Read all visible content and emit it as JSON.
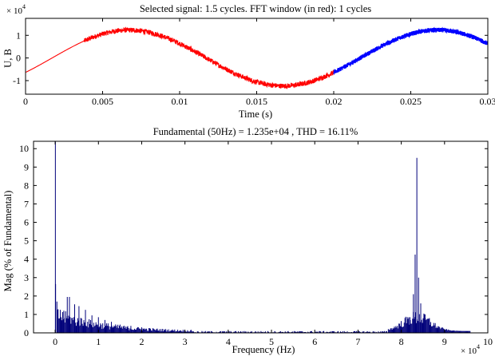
{
  "chart_data": [
    {
      "type": "line",
      "title": "Selected signal: 1.5 cycles. FFT window (in red): 1 cycles",
      "xlabel": "Time (s)",
      "ylabel": "U, B",
      "y_multiplier_label": "× 10",
      "y_multiplier_exp": "4",
      "xlim": [
        0,
        0.03
      ],
      "ylim": [
        -1.6,
        1.75
      ],
      "y_unit_scale": 10000,
      "x_ticks": [
        0,
        0.005,
        0.01,
        0.015,
        0.02,
        0.025,
        0.03
      ],
      "x_tick_labels": [
        "0",
        "0.005",
        "0.01",
        "0.015",
        "0.02",
        "0.025",
        "0.03"
      ],
      "y_ticks": [
        -1,
        0,
        1
      ],
      "y_tick_labels": [
        "-1",
        "0",
        "1"
      ],
      "grid": false,
      "series": [
        {
          "color": "#ff0000",
          "x_range": [
            0,
            0.02
          ],
          "fundamental_amplitude": 1.235,
          "phase_deg": -31,
          "noise_start": 0.0038,
          "noise_amplitude": 0.22
        },
        {
          "color": "#0000ff",
          "x_range": [
            0.02,
            0.03
          ],
          "fundamental_amplitude": 1.235,
          "phase_deg": -31,
          "noise_amplitude": 0.2
        }
      ]
    },
    {
      "type": "bar",
      "title": "Fundamental (50Hz) = 1.235e+04 , THD = 16.11%",
      "xlabel": "Frequency (Hz)",
      "ylabel": "Mag (% of Fundamental)",
      "x_multiplier_label": "× 10",
      "x_multiplier_exp": "4",
      "xlim": [
        -0.5,
        10
      ],
      "ylim": [
        0,
        10.4
      ],
      "x_unit_scale": 10000,
      "x_ticks": [
        0,
        1,
        2,
        3,
        4,
        5,
        6,
        7,
        8,
        9,
        10
      ],
      "x_tick_labels": [
        "0",
        "1",
        "2",
        "3",
        "4",
        "5",
        "6",
        "7",
        "8",
        "9",
        "10"
      ],
      "y_ticks": [
        0,
        1,
        2,
        3,
        4,
        5,
        6,
        7,
        8,
        9,
        10
      ],
      "y_tick_labels": [
        "0",
        "1",
        "2",
        "3",
        "4",
        "5",
        "6",
        "7",
        "8",
        "9",
        "10"
      ],
      "grid": false,
      "bar_color": "#00007a",
      "fundamental": {
        "x": 0.005,
        "value": 100
      },
      "peaks": [
        {
          "x": 0.01,
          "value": 2.65
        },
        {
          "x": 0.04,
          "value": 1.7
        },
        {
          "x": 0.12,
          "value": 1.25
        },
        {
          "x": 0.2,
          "value": 1.2
        },
        {
          "x": 0.28,
          "value": 1.95
        },
        {
          "x": 0.33,
          "value": 1.95
        },
        {
          "x": 0.45,
          "value": 1.55
        },
        {
          "x": 0.55,
          "value": 1.45
        },
        {
          "x": 0.7,
          "value": 1.25
        },
        {
          "x": 0.85,
          "value": 0.95
        },
        {
          "x": 1.0,
          "value": 0.85
        },
        {
          "x": 1.15,
          "value": 0.7
        },
        {
          "x": 1.3,
          "value": 0.6
        },
        {
          "x": 1.5,
          "value": 0.45
        },
        {
          "x": 1.75,
          "value": 0.38
        },
        {
          "x": 2.0,
          "value": 0.3
        },
        {
          "x": 8.32,
          "value": 4.25
        },
        {
          "x": 8.36,
          "value": 9.5
        },
        {
          "x": 8.4,
          "value": 3.0
        },
        {
          "x": 8.28,
          "value": 2.1
        },
        {
          "x": 8.45,
          "value": 1.6
        },
        {
          "x": 8.2,
          "value": 0.85
        },
        {
          "x": 8.55,
          "value": 1.0
        },
        {
          "x": 8.65,
          "value": 0.8
        }
      ],
      "low_band": {
        "from": 0.05,
        "to": 3.2,
        "start_level": 1.3,
        "decay": 0.9
      },
      "high_band": {
        "from": 7.7,
        "to": 9.6,
        "center": 8.36,
        "level": 1.1,
        "width": 0.45
      },
      "floor_band": {
        "from": 3.2,
        "to": 7.7,
        "level": 0.1
      }
    }
  ]
}
